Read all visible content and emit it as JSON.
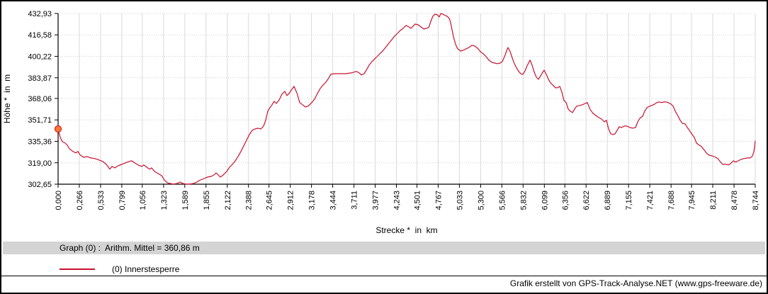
{
  "chart_data": {
    "type": "line",
    "title": "",
    "xlabel": "Strecke *  in  km",
    "ylabel": "Höhe *  in  m",
    "xlim": [
      0,
      8.744
    ],
    "ylim": [
      302.65,
      432.93
    ],
    "x_tick_labels": [
      "0,000",
      "0,266",
      "0,533",
      "0,799",
      "1,056",
      "1,323",
      "1,589",
      "1,855",
      "2,122",
      "2,388",
      "2,645",
      "2,912",
      "3,178",
      "3,444",
      "3,711",
      "3,977",
      "4,243",
      "4,501",
      "4,767",
      "5,033",
      "5,300",
      "5,566",
      "5,832",
      "6,099",
      "6,356",
      "6,622",
      "6,889",
      "7,155",
      "7,421",
      "7,688",
      "7,945",
      "8,211",
      "8,478",
      "8,744"
    ],
    "y_tick_labels": [
      "432,93",
      "416,58",
      "400,22",
      "383,87",
      "368,06",
      "351,71",
      "335,36",
      "319,00",
      "302,65"
    ],
    "grid": {
      "vertical": "solid",
      "horizontal": "dotted",
      "color_v": "#d9d9d9",
      "color_h": "#cfcfcf"
    },
    "legend_position": "bottom-left",
    "series": [
      {
        "name": "(0) Innerstesperre",
        "color": "#c8102e",
        "points": [
          [
            0.0,
            344.8
          ],
          [
            0.027,
            338.4
          ],
          [
            0.053,
            335.1
          ],
          [
            0.089,
            334.0
          ],
          [
            0.116,
            332.4
          ],
          [
            0.142,
            329.7
          ],
          [
            0.187,
            327.6
          ],
          [
            0.222,
            326.5
          ],
          [
            0.249,
            327.6
          ],
          [
            0.276,
            324.9
          ],
          [
            0.32,
            323.2
          ],
          [
            0.364,
            323.8
          ],
          [
            0.409,
            322.7
          ],
          [
            0.462,
            322.2
          ],
          [
            0.515,
            321.1
          ],
          [
            0.56,
            320.0
          ],
          [
            0.604,
            317.8
          ],
          [
            0.649,
            314.1
          ],
          [
            0.675,
            316.2
          ],
          [
            0.711,
            315.1
          ],
          [
            0.755,
            316.8
          ],
          [
            0.8,
            317.8
          ],
          [
            0.844,
            318.9
          ],
          [
            0.889,
            320.0
          ],
          [
            0.924,
            320.5
          ],
          [
            0.96,
            318.9
          ],
          [
            1.004,
            317.3
          ],
          [
            1.049,
            316.2
          ],
          [
            1.075,
            317.3
          ],
          [
            1.111,
            315.7
          ],
          [
            1.146,
            314.1
          ],
          [
            1.173,
            315.1
          ],
          [
            1.209,
            312.4
          ],
          [
            1.253,
            310.8
          ],
          [
            1.298,
            309.2
          ],
          [
            1.333,
            305.9
          ],
          [
            1.369,
            303.8
          ],
          [
            1.404,
            303.2
          ],
          [
            1.449,
            302.7
          ],
          [
            1.493,
            303.2
          ],
          [
            1.529,
            304.3
          ],
          [
            1.564,
            303.2
          ],
          [
            1.6,
            302.7
          ],
          [
            1.653,
            302.7
          ],
          [
            1.697,
            303.2
          ],
          [
            1.742,
            304.3
          ],
          [
            1.786,
            305.9
          ],
          [
            1.831,
            307.0
          ],
          [
            1.875,
            308.1
          ],
          [
            1.92,
            308.6
          ],
          [
            1.955,
            309.7
          ],
          [
            1.982,
            311.3
          ],
          [
            2.009,
            309.7
          ],
          [
            2.035,
            308.1
          ],
          [
            2.062,
            309.2
          ],
          [
            2.088,
            310.8
          ],
          [
            2.115,
            312.4
          ],
          [
            2.151,
            315.7
          ],
          [
            2.186,
            317.8
          ],
          [
            2.222,
            320.5
          ],
          [
            2.257,
            323.8
          ],
          [
            2.293,
            327.6
          ],
          [
            2.328,
            331.9
          ],
          [
            2.364,
            336.2
          ],
          [
            2.399,
            340.5
          ],
          [
            2.435,
            343.8
          ],
          [
            2.47,
            344.8
          ],
          [
            2.506,
            345.4
          ],
          [
            2.542,
            344.8
          ],
          [
            2.577,
            347.0
          ],
          [
            2.604,
            351.4
          ],
          [
            2.63,
            358.4
          ],
          [
            2.657,
            361.1
          ],
          [
            2.684,
            363.3
          ],
          [
            2.71,
            365.9
          ],
          [
            2.737,
            364.3
          ],
          [
            2.773,
            367.0
          ],
          [
            2.808,
            371.4
          ],
          [
            2.844,
            373.5
          ],
          [
            2.87,
            370.3
          ],
          [
            2.897,
            371.9
          ],
          [
            2.933,
            375.1
          ],
          [
            2.959,
            377.3
          ],
          [
            2.995,
            372.4
          ],
          [
            3.03,
            364.9
          ],
          [
            3.066,
            363.3
          ],
          [
            3.101,
            361.6
          ],
          [
            3.137,
            362.2
          ],
          [
            3.181,
            364.9
          ],
          [
            3.217,
            367.6
          ],
          [
            3.252,
            371.9
          ],
          [
            3.288,
            375.7
          ],
          [
            3.324,
            378.4
          ],
          [
            3.359,
            380.5
          ],
          [
            3.395,
            383.8
          ],
          [
            3.421,
            386.5
          ],
          [
            3.466,
            387.0
          ],
          [
            3.537,
            387.0
          ],
          [
            3.608,
            387.0
          ],
          [
            3.679,
            387.6
          ],
          [
            3.741,
            388.7
          ],
          [
            3.777,
            387.6
          ],
          [
            3.803,
            386.0
          ],
          [
            3.839,
            387.0
          ],
          [
            3.866,
            389.7
          ],
          [
            3.901,
            393.5
          ],
          [
            3.937,
            396.2
          ],
          [
            3.972,
            398.4
          ],
          [
            4.008,
            400.5
          ],
          [
            4.043,
            402.7
          ],
          [
            4.079,
            404.9
          ],
          [
            4.115,
            407.6
          ],
          [
            4.15,
            410.3
          ],
          [
            4.186,
            413.0
          ],
          [
            4.221,
            415.7
          ],
          [
            4.257,
            417.8
          ],
          [
            4.293,
            420.0
          ],
          [
            4.328,
            421.6
          ],
          [
            4.364,
            423.8
          ],
          [
            4.399,
            422.7
          ],
          [
            4.426,
            421.6
          ],
          [
            4.453,
            423.3
          ],
          [
            4.479,
            424.9
          ],
          [
            4.515,
            424.3
          ],
          [
            4.55,
            422.7
          ],
          [
            4.586,
            421.1
          ],
          [
            4.621,
            421.6
          ],
          [
            4.648,
            422.2
          ],
          [
            4.675,
            427.0
          ],
          [
            4.701,
            430.8
          ],
          [
            4.728,
            432.4
          ],
          [
            4.755,
            431.9
          ],
          [
            4.781,
            430.3
          ],
          [
            4.799,
            432.9
          ],
          [
            4.826,
            432.4
          ],
          [
            4.852,
            431.4
          ],
          [
            4.879,
            430.8
          ],
          [
            4.906,
            429.2
          ],
          [
            4.923,
            426.0
          ],
          [
            4.941,
            420.5
          ],
          [
            4.959,
            415.1
          ],
          [
            4.986,
            409.2
          ],
          [
            5.012,
            406.0
          ],
          [
            5.048,
            404.3
          ],
          [
            5.083,
            404.9
          ],
          [
            5.119,
            406.0
          ],
          [
            5.154,
            407.0
          ],
          [
            5.19,
            408.7
          ],
          [
            5.225,
            408.1
          ],
          [
            5.261,
            406.5
          ],
          [
            5.296,
            403.8
          ],
          [
            5.332,
            402.2
          ],
          [
            5.368,
            400.0
          ],
          [
            5.403,
            397.3
          ],
          [
            5.439,
            395.7
          ],
          [
            5.474,
            395.1
          ],
          [
            5.51,
            394.6
          ],
          [
            5.545,
            395.1
          ],
          [
            5.572,
            396.2
          ],
          [
            5.599,
            400.0
          ],
          [
            5.625,
            404.3
          ],
          [
            5.643,
            407.0
          ],
          [
            5.67,
            403.8
          ],
          [
            5.697,
            398.9
          ],
          [
            5.723,
            394.6
          ],
          [
            5.75,
            391.4
          ],
          [
            5.777,
            388.7
          ],
          [
            5.803,
            387.0
          ],
          [
            5.83,
            386.5
          ],
          [
            5.857,
            389.2
          ],
          [
            5.883,
            393.0
          ],
          [
            5.919,
            397.3
          ],
          [
            5.945,
            393.5
          ],
          [
            5.972,
            388.1
          ],
          [
            5.999,
            384.3
          ],
          [
            6.025,
            382.7
          ],
          [
            6.052,
            385.4
          ],
          [
            6.079,
            388.1
          ],
          [
            6.096,
            389.7
          ],
          [
            6.123,
            386.5
          ],
          [
            6.15,
            382.7
          ],
          [
            6.176,
            380.0
          ],
          [
            6.203,
            378.4
          ],
          [
            6.238,
            376.2
          ],
          [
            6.265,
            376.2
          ],
          [
            6.292,
            377.3
          ],
          [
            6.318,
            373.0
          ],
          [
            6.345,
            366.5
          ],
          [
            6.372,
            364.9
          ],
          [
            6.398,
            360.0
          ],
          [
            6.425,
            358.4
          ],
          [
            6.452,
            357.3
          ],
          [
            6.478,
            360.0
          ],
          [
            6.505,
            362.2
          ],
          [
            6.541,
            362.7
          ],
          [
            6.576,
            363.3
          ],
          [
            6.612,
            364.3
          ],
          [
            6.638,
            364.9
          ],
          [
            6.674,
            359.5
          ],
          [
            6.709,
            356.7
          ],
          [
            6.745,
            355.1
          ],
          [
            6.781,
            353.5
          ],
          [
            6.816,
            352.4
          ],
          [
            6.852,
            350.2
          ],
          [
            6.878,
            351.4
          ],
          [
            6.905,
            344.8
          ],
          [
            6.932,
            341.1
          ],
          [
            6.958,
            340.5
          ],
          [
            6.985,
            341.1
          ],
          [
            7.012,
            343.8
          ],
          [
            7.038,
            346.5
          ],
          [
            7.065,
            345.9
          ],
          [
            7.101,
            347.0
          ],
          [
            7.136,
            347.0
          ],
          [
            7.172,
            345.9
          ],
          [
            7.207,
            345.4
          ],
          [
            7.243,
            345.9
          ],
          [
            7.27,
            350.2
          ],
          [
            7.296,
            352.9
          ],
          [
            7.332,
            354.6
          ],
          [
            7.358,
            358.4
          ],
          [
            7.385,
            361.1
          ],
          [
            7.421,
            362.2
          ],
          [
            7.447,
            362.7
          ],
          [
            7.483,
            363.8
          ],
          [
            7.509,
            364.9
          ],
          [
            7.536,
            365.4
          ],
          [
            7.572,
            364.9
          ],
          [
            7.598,
            365.4
          ],
          [
            7.625,
            365.4
          ],
          [
            7.652,
            364.9
          ],
          [
            7.687,
            363.8
          ],
          [
            7.714,
            362.2
          ],
          [
            7.741,
            358.4
          ],
          [
            7.776,
            354.6
          ],
          [
            7.803,
            351.4
          ],
          [
            7.829,
            349.2
          ],
          [
            7.865,
            348.6
          ],
          [
            7.892,
            345.9
          ],
          [
            7.918,
            343.8
          ],
          [
            7.954,
            340.5
          ],
          [
            7.98,
            338.4
          ],
          [
            8.007,
            334.0
          ],
          [
            8.043,
            332.4
          ],
          [
            8.069,
            331.4
          ],
          [
            8.105,
            328.6
          ],
          [
            8.132,
            326.5
          ],
          [
            8.158,
            324.9
          ],
          [
            8.203,
            324.3
          ],
          [
            8.247,
            323.2
          ],
          [
            8.274,
            322.2
          ],
          [
            8.309,
            319.5
          ],
          [
            8.336,
            317.8
          ],
          [
            8.381,
            317.8
          ],
          [
            8.407,
            317.3
          ],
          [
            8.434,
            318.4
          ],
          [
            8.469,
            320.5
          ],
          [
            8.496,
            319.5
          ],
          [
            8.532,
            320.5
          ],
          [
            8.567,
            321.6
          ],
          [
            8.603,
            322.2
          ],
          [
            8.647,
            322.7
          ],
          [
            8.683,
            322.7
          ],
          [
            8.709,
            324.3
          ],
          [
            8.727,
            327.6
          ],
          [
            8.736,
            331.4
          ],
          [
            8.744,
            335.6
          ]
        ]
      }
    ],
    "start_marker": {
      "km": 0.0,
      "m": 344.8,
      "fill": "#f97c28",
      "stroke": "#d41e3c"
    }
  },
  "info_bar": {
    "text": "Graph (0) :  Arithm. Mittel = 360,86 m"
  },
  "legend": {
    "label": "(0) Innerstesperre",
    "line_color": "#c8102e"
  },
  "footer": {
    "text": "Grafik erstellt von GPS-Track-Analyse.NET (www.gps-freeware.de)"
  },
  "colors": {
    "series": "#c8102e",
    "grid_vertical": "#d9d9d9",
    "grid_horizontal": "#cfcfcf",
    "info_bar_bg": "#d4d4d4",
    "axis": "#000000",
    "border": "#000000",
    "background": "#ffffff"
  }
}
